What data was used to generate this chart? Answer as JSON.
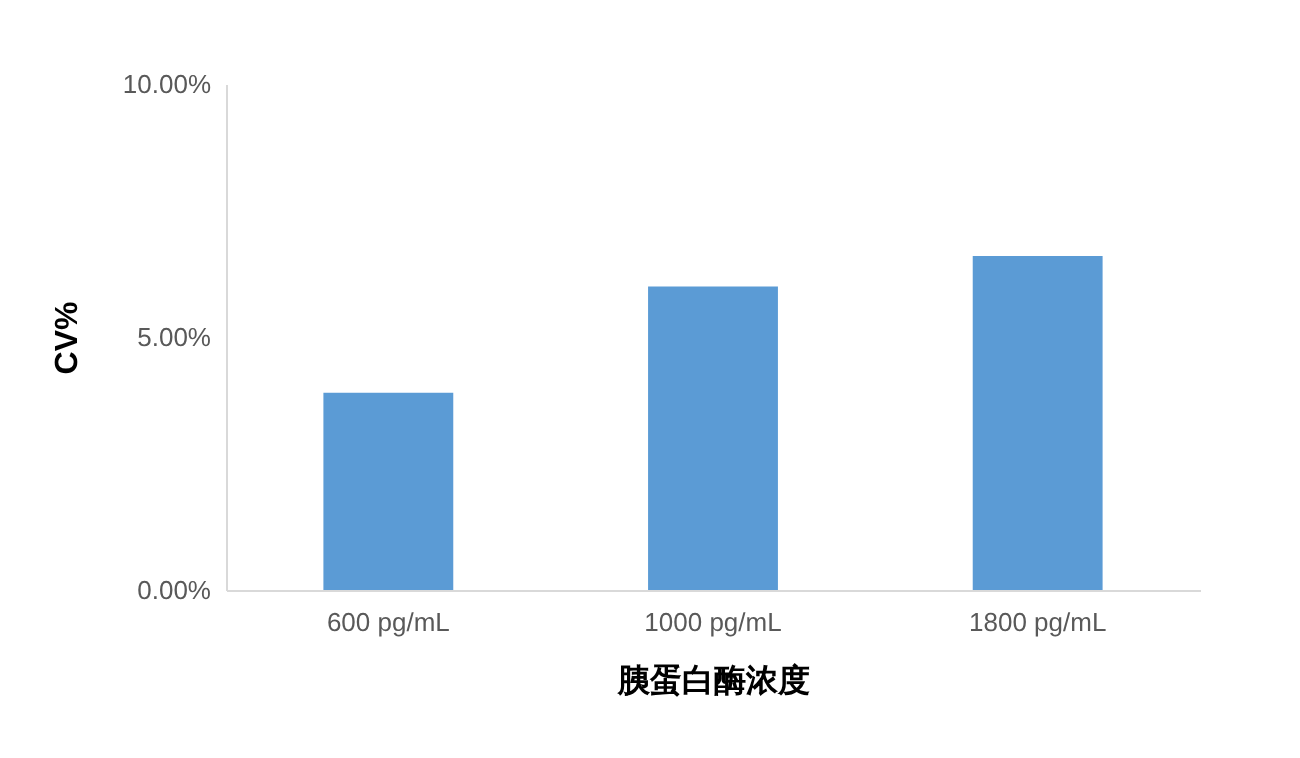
{
  "chart_data": {
    "type": "bar",
    "categories": [
      "600 pg/mL",
      "1000 pg/mL",
      "1800 pg/mL"
    ],
    "values": [
      3.9,
      6.0,
      6.6
    ],
    "color": "#5b9bd5",
    "xlabel": "胰蛋白酶浓度",
    "ylabel": "CV%",
    "ylim": [
      0,
      10
    ],
    "yticks": [
      {
        "value": 0,
        "label": "0.00%"
      },
      {
        "value": 5,
        "label": "5.00%"
      },
      {
        "value": 10,
        "label": "10.00%"
      }
    ],
    "grid": false
  }
}
